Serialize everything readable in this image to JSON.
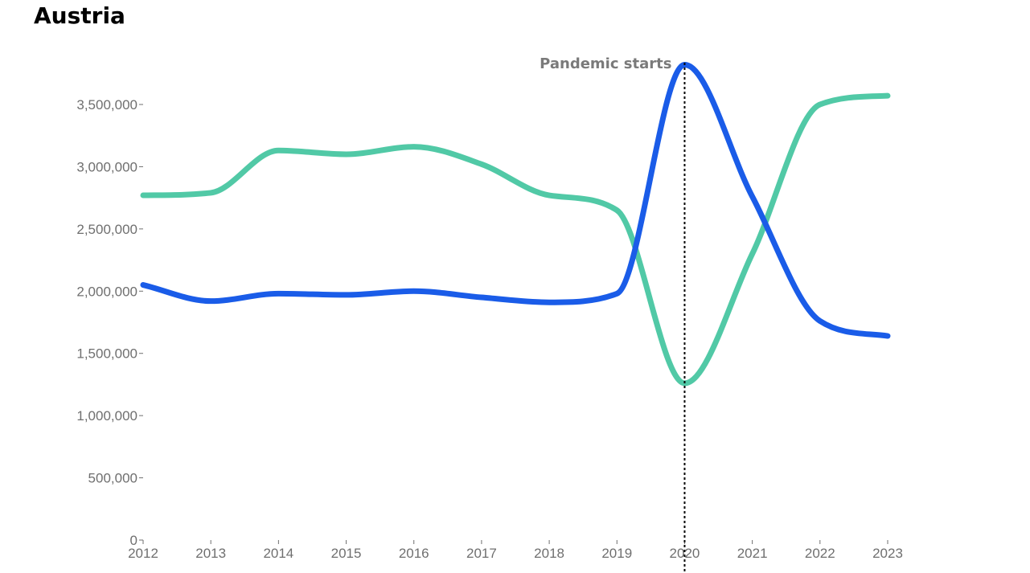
{
  "chart_data": {
    "type": "line",
    "title": "Austria",
    "xlabel": "",
    "ylabel": "",
    "x": [
      2012,
      2013,
      2014,
      2015,
      2016,
      2017,
      2018,
      2019,
      2020,
      2021,
      2022,
      2023
    ],
    "x_tick_labels": [
      "2012",
      "2013",
      "2014",
      "2015",
      "2016",
      "2017",
      "2018",
      "2019",
      "2020",
      "2021",
      "2022",
      "2023"
    ],
    "ylim": [
      0,
      3800000
    ],
    "y_ticks": [
      0,
      500000,
      1000000,
      1500000,
      2000000,
      2500000,
      3000000,
      3500000
    ],
    "y_tick_labels": [
      "0",
      "500,000",
      "1,000,000",
      "1,500,000",
      "2,000,000",
      "2,500,000",
      "3,000,000",
      "3,500,000"
    ],
    "series": [
      {
        "color": "#51c9a6",
        "values": [
          2770000,
          2790000,
          3130000,
          3100000,
          3160000,
          3020000,
          2770000,
          2650000,
          1260000,
          2300000,
          3500000,
          3570000
        ]
      },
      {
        "color": "#1a5ce8",
        "values": [
          2050000,
          1920000,
          1980000,
          1970000,
          2000000,
          1950000,
          1910000,
          1980000,
          3820000,
          2760000,
          1760000,
          1640000
        ]
      }
    ],
    "annotation": {
      "x": 2020,
      "text": "Pandemic starts",
      "line_style": "dotted"
    },
    "grid": false,
    "legend": "none"
  }
}
